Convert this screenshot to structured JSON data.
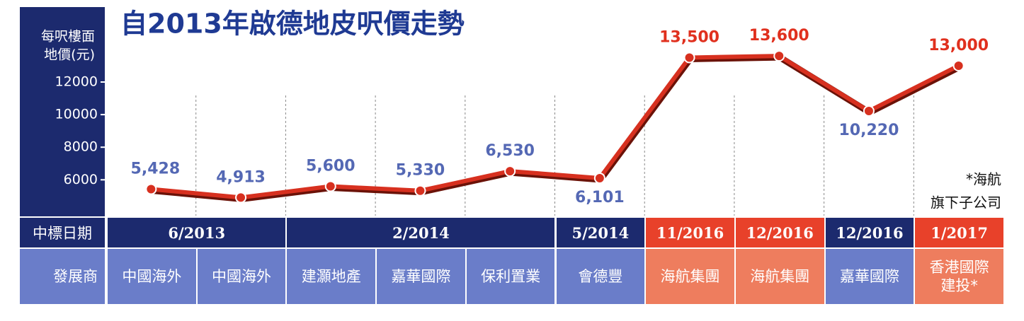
{
  "chart_data": {
    "type": "line",
    "title": "自2013年啟德地皮呎價走勢",
    "y_label_lines": [
      "每呎樓面",
      "地價(元)"
    ],
    "ylim": [
      3800,
      16600
    ],
    "yticks": [
      6000,
      8000,
      10000,
      12000
    ],
    "categories": [
      "中國海外",
      "中國海外",
      "建灝地產",
      "嘉華國際",
      "保利置業",
      "會德豐",
      "海航集團",
      "海航集團",
      "嘉華國際",
      "香港國際建投*"
    ],
    "series": [
      {
        "name": "每呎樓面地價",
        "color": "#d7301f",
        "values": [
          5428,
          4913,
          5600,
          5330,
          6530,
          6101,
          13500,
          13600,
          10220,
          13000
        ],
        "value_labels": [
          "5,428",
          "4,913",
          "5,600",
          "5,330",
          "6,530",
          "6,101",
          "13,500",
          "13,600",
          "10,220",
          "13,000"
        ],
        "label_colors": [
          "#5468b4",
          "#5468b4",
          "#5468b4",
          "#5468b4",
          "#5468b4",
          "#5468b4",
          "#e0301e",
          "#e0301e",
          "#5468b4",
          "#e0301e"
        ]
      }
    ],
    "date_row_label": "中標日期",
    "dates": [
      "6/2013",
      null,
      "2/2014",
      null,
      null,
      "5/2014",
      "11/2016",
      "12/2016",
      "12/2016",
      "1/2017"
    ],
    "date_colors": [
      "#1c2a6e",
      "#1c2a6e",
      "#1c2a6e",
      "#1c2a6e",
      "#1c2a6e",
      "#1c2a6e",
      "#e8412a",
      "#e8412a",
      "#1c2a6e",
      "#e8412a"
    ],
    "developer_row_label": "發展商",
    "developer_colors": [
      "#6a7dc9",
      "#6a7dc9",
      "#6a7dc9",
      "#6a7dc9",
      "#6a7dc9",
      "#6a7dc9",
      "#ee7d5e",
      "#ee7d5e",
      "#6a7dc9",
      "#ee7d5e"
    ],
    "note_lines": [
      "*海航",
      "旗下子公司"
    ]
  }
}
